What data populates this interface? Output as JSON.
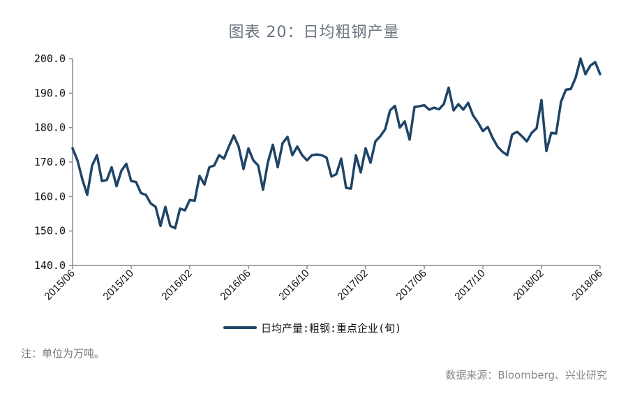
{
  "title": "图表 20：日均粗钢产量",
  "legend": {
    "label": "日均产量:粗钢:重点企业(旬)",
    "color": "#1f4466"
  },
  "note": "注：单位为万吨。",
  "source": "数据来源：Bloomberg、兴业研究",
  "chart_data": {
    "type": "line",
    "title": "图表 20：日均粗钢产量",
    "xlabel": "",
    "ylabel": "",
    "unit": "万吨",
    "ylim": [
      140,
      200
    ],
    "yticks": [
      "200.0",
      "190.0",
      "180.0",
      "170.0",
      "160.0",
      "150.0",
      "140.0"
    ],
    "ytick_values": [
      200,
      190,
      180,
      170,
      160,
      150,
      140
    ],
    "xticks": [
      "2015/06",
      "2015/10",
      "2016/02",
      "2016/06",
      "2016/10",
      "2017/02",
      "2017/06",
      "2017/10",
      "2018/02",
      "2018/06"
    ],
    "xtick_positions": [
      0,
      0.1111,
      0.2222,
      0.3333,
      0.4444,
      0.5556,
      0.6667,
      0.7778,
      0.8889,
      1.0
    ],
    "grid": false,
    "legend_position": "bottom",
    "series": [
      {
        "name": "日均产量:粗钢:重点企业(旬)",
        "color": "#1f4466",
        "values": [
          174,
          170.5,
          165,
          160.5,
          169,
          172,
          164.5,
          164.8,
          168.5,
          163,
          167.5,
          169.5,
          164.5,
          164.2,
          161,
          160.5,
          158,
          157,
          151.5,
          157,
          151.5,
          150.8,
          156.5,
          156,
          159,
          158.8,
          166,
          163.5,
          168.5,
          169,
          172,
          171,
          174.5,
          177.7,
          174.5,
          168,
          174,
          170.5,
          169,
          162,
          170,
          175,
          168.5,
          175.5,
          177.3,
          172,
          174.5,
          172,
          170.5,
          172,
          172.2,
          172,
          171.3,
          165.8,
          166.5,
          171,
          162.5,
          162.3,
          172,
          167,
          174,
          169.8,
          176,
          177.5,
          179.5,
          185,
          186.3,
          180,
          181.8,
          176.5,
          186,
          186.2,
          186.5,
          185.2,
          185.8,
          185.3,
          186.8,
          191.6,
          185,
          186.8,
          185.2,
          187.2,
          183.5,
          181.5,
          179,
          180.2,
          177,
          174.5,
          173,
          172,
          178,
          178.8,
          177.5,
          176,
          178.5,
          179.8,
          188,
          173.2,
          178.5,
          178.3,
          187.5,
          191,
          191.2,
          194.5,
          200,
          195.5,
          198,
          199,
          195.5
        ]
      }
    ]
  }
}
